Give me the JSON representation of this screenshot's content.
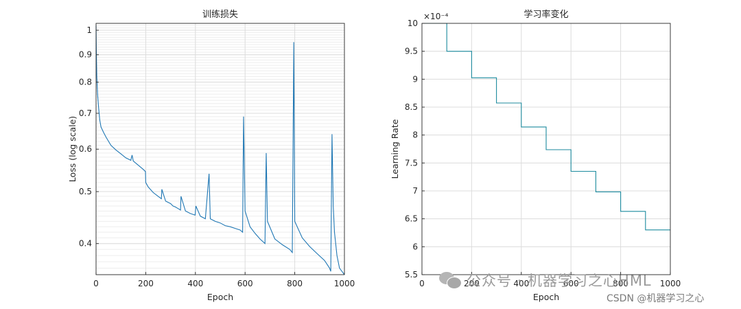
{
  "watermark": {
    "text": "公众号 · 机器学习之心HML",
    "icon": "wechat-icon"
  },
  "credit": "CSDN @机器学习之心",
  "chart_data": [
    {
      "type": "line",
      "title": "训练损失",
      "xlabel": "Epoch",
      "ylabel": "Loss (log scale)",
      "yscale": "log",
      "xlim": [
        0,
        1000
      ],
      "ylim": [
        0.35,
        1.03
      ],
      "xticks": [
        0,
        200,
        400,
        600,
        800,
        1000
      ],
      "yticks": [
        0.4,
        0.5,
        0.6,
        0.7,
        0.8,
        0.9,
        1
      ],
      "grid": true,
      "color": "#1f77b4",
      "series": [
        {
          "x": [
            0,
            1,
            3,
            6,
            10,
            15,
            20,
            30,
            40,
            60,
            80,
            100,
            120,
            140,
            145,
            150,
            170,
            190,
            199,
            200,
            210,
            230,
            250,
            263,
            265,
            280,
            300,
            310,
            320,
            330,
            340,
            342,
            360,
            380,
            399,
            402,
            420,
            440,
            455,
            460,
            480,
            500,
            520,
            540,
            560,
            580,
            590,
            594,
            600,
            620,
            640,
            660,
            680,
            685,
            690,
            720,
            750,
            780,
            790,
            796,
            800,
            830,
            860,
            890,
            920,
            940,
            945,
            950,
            955,
            960,
            970,
            980,
            990,
            1000
          ],
          "y": [
            1.02,
            0.92,
            0.82,
            0.76,
            0.72,
            0.68,
            0.66,
            0.645,
            0.632,
            0.61,
            0.598,
            0.588,
            0.578,
            0.572,
            0.585,
            0.57,
            0.56,
            0.55,
            0.545,
            0.52,
            0.51,
            0.498,
            0.49,
            0.485,
            0.505,
            0.48,
            0.475,
            0.47,
            0.468,
            0.465,
            0.462,
            0.49,
            0.46,
            0.455,
            0.452,
            0.47,
            0.45,
            0.445,
            0.54,
            0.445,
            0.44,
            0.437,
            0.432,
            0.43,
            0.427,
            0.424,
            0.42,
            0.69,
            0.46,
            0.43,
            0.418,
            0.408,
            0.4,
            0.59,
            0.44,
            0.408,
            0.398,
            0.39,
            0.385,
            0.95,
            0.44,
            0.41,
            0.395,
            0.383,
            0.372,
            0.36,
            0.355,
            0.64,
            0.47,
            0.42,
            0.38,
            0.36,
            0.355,
            0.35
          ]
        }
      ]
    },
    {
      "type": "line",
      "title": "学习率变化",
      "xlabel": "Epoch",
      "ylabel": "Learning Rate",
      "multiplier": "×10⁻⁴",
      "xlim": [
        0,
        1000
      ],
      "ylim": [
        5.5,
        10
      ],
      "xticks": [
        0,
        200,
        400,
        600,
        800,
        1000
      ],
      "yticks": [
        5.5,
        6,
        6.5,
        7,
        7.5,
        8,
        8.5,
        9,
        9.5,
        10
      ],
      "grid": true,
      "color": "#1b8a9e",
      "series": [
        {
          "x": [
            0,
            100,
            100,
            200,
            200,
            300,
            300,
            400,
            400,
            500,
            500,
            600,
            600,
            700,
            700,
            800,
            800,
            900,
            900,
            1000
          ],
          "y": [
            10,
            10,
            9.5,
            9.5,
            9.025,
            9.025,
            8.574,
            8.574,
            8.145,
            8.145,
            7.738,
            7.738,
            7.351,
            7.351,
            6.983,
            6.983,
            6.634,
            6.634,
            6.302,
            6.302
          ]
        }
      ]
    }
  ]
}
